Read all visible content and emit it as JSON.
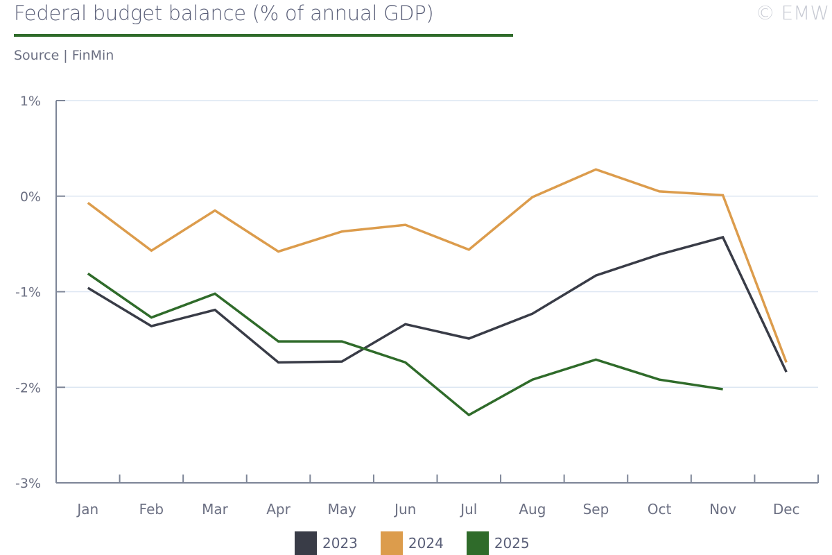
{
  "header": {
    "title": "Federal budget balance (% of annual GDP)",
    "source": "Source | FinMin",
    "copyright": "© EMW"
  },
  "colors": {
    "accent_rule": "#2f6b2a",
    "axis": "#7d8597",
    "grid": "#dce6f2"
  },
  "chart_data": {
    "type": "line",
    "title": "Federal budget balance (% of annual GDP)",
    "xlabel": "",
    "ylabel": "",
    "categories": [
      "Jan",
      "Feb",
      "Mar",
      "Apr",
      "May",
      "Jun",
      "Jul",
      "Aug",
      "Sep",
      "Oct",
      "Nov",
      "Dec"
    ],
    "ylim": [
      -3,
      1
    ],
    "yticks": [
      1,
      0,
      -1,
      -2,
      -3
    ],
    "ytick_labels": [
      "1%",
      "0%",
      "-1%",
      "-2%",
      "-3%"
    ],
    "grid": true,
    "legend_position": "bottom-center",
    "series": [
      {
        "name": "2023",
        "color": "#393c47",
        "values": [
          -0.96,
          -1.36,
          -1.19,
          -1.74,
          -1.73,
          -1.34,
          -1.49,
          -1.23,
          -0.83,
          -0.61,
          -0.43,
          -1.84
        ]
      },
      {
        "name": "2024",
        "color": "#dc9c4c",
        "values": [
          -0.07,
          -0.57,
          -0.15,
          -0.58,
          -0.37,
          -0.3,
          -0.56,
          -0.01,
          0.28,
          0.05,
          0.01,
          -1.74
        ]
      },
      {
        "name": "2025",
        "color": "#2f6b2a",
        "values": [
          -0.81,
          -1.27,
          -1.02,
          -1.52,
          -1.52,
          -1.74,
          -2.29,
          -1.92,
          -1.71,
          -1.92,
          -2.02,
          null
        ]
      }
    ]
  }
}
